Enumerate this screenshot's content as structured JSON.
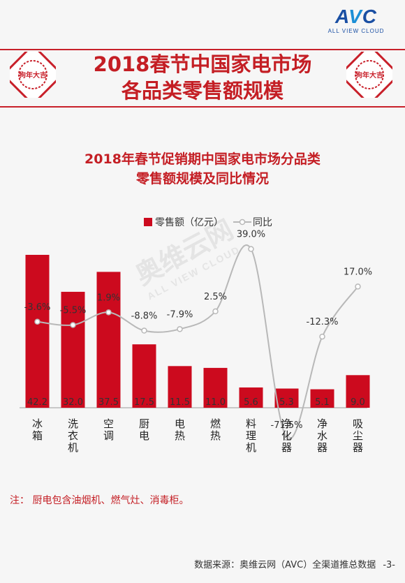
{
  "logo": {
    "brand_a": "A",
    "brand_v": "V",
    "brand_c": "C",
    "tagline": "ALL VIEW CLOUD"
  },
  "stamp_text": "狗年大吉",
  "page_title": {
    "line1": "2018春节中国家电市场",
    "line2": "各品类零售额规模"
  },
  "chart_title": {
    "line1": "2018年春节促销期中国家电市场分品类",
    "line2": "零售额规模及同比情况"
  },
  "watermark": {
    "main": "奥维云网",
    "sub": "ALL VIEW CLOUD"
  },
  "note": "注： 厨电包含油烟机、燃气灶、消毒柜。",
  "footer": {
    "source": "数据来源：奥维云网（AVC）全渠道推总数据",
    "page": "-3-"
  },
  "colors": {
    "bar": "#cc0a1e",
    "line": "#b8b8b8",
    "title": "#c41e24",
    "brand": "#1a4fa3"
  },
  "chart_data": {
    "type": "bar",
    "categories": [
      "冰箱",
      "洗衣机",
      "空调",
      "厨电",
      "电热",
      "燃热",
      "料理机",
      "净化器",
      "净水器",
      "吸尘器"
    ],
    "series": [
      {
        "name": "零售额（亿元）",
        "type": "bar",
        "values": [
          42.2,
          32.0,
          37.5,
          17.5,
          11.5,
          11.0,
          5.6,
          5.3,
          5.1,
          9.0
        ],
        "labels": [
          "42.2",
          "32.0",
          "37.5",
          "17.5",
          "11.5",
          "11.0",
          "5.6",
          "5.3",
          "5.1",
          "9.0"
        ]
      },
      {
        "name": "同比",
        "type": "line",
        "unit": "%",
        "values": [
          -3.6,
          -5.5,
          1.9,
          -8.8,
          -7.9,
          2.5,
          39.0,
          -71.5,
          -12.3,
          17.0
        ],
        "labels": [
          "-3.6%",
          "-5.5%",
          "1.9%",
          "-8.8%",
          "-7.9%",
          "2.5%",
          "39.0%",
          "-71.5%",
          "-12.3%",
          "17.0%"
        ]
      }
    ],
    "legend_position": "top-center",
    "grid": false
  }
}
